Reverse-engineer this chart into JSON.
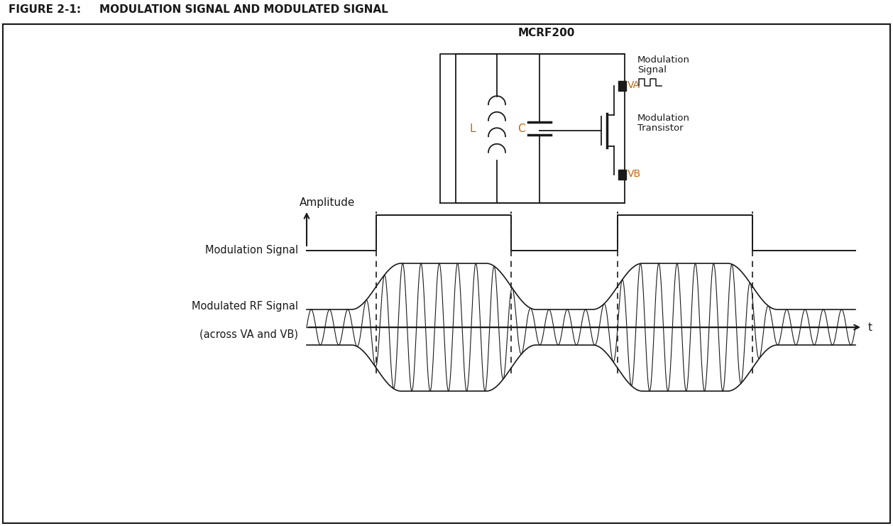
{
  "title_left": "FIGURE 2-1:",
  "title_right": "MODULATION SIGNAL AND MODULATED SIGNAL",
  "background_color": "#ffffff",
  "black": "#1a1a1a",
  "orange": "#c8660a",
  "amplitude_label": "Amplitude",
  "mod_signal_label": "Modulation Signal",
  "mod_rf_line1": "Modulated RF Signal",
  "mod_rf_line2": "(across VA and VB)",
  "t_label": "t",
  "mcrf_label": "MCRF200",
  "va_label": "VA",
  "vb_label": "VB",
  "mod_signal_text1": "Modulation",
  "mod_signal_text2": "Signal",
  "mod_transistor_text1": "Modulation",
  "mod_transistor_text2": "Transistor",
  "L_label": "L",
  "C_label": "C",
  "fig_width": 12.58,
  "fig_height": 7.41,
  "dpi": 100
}
